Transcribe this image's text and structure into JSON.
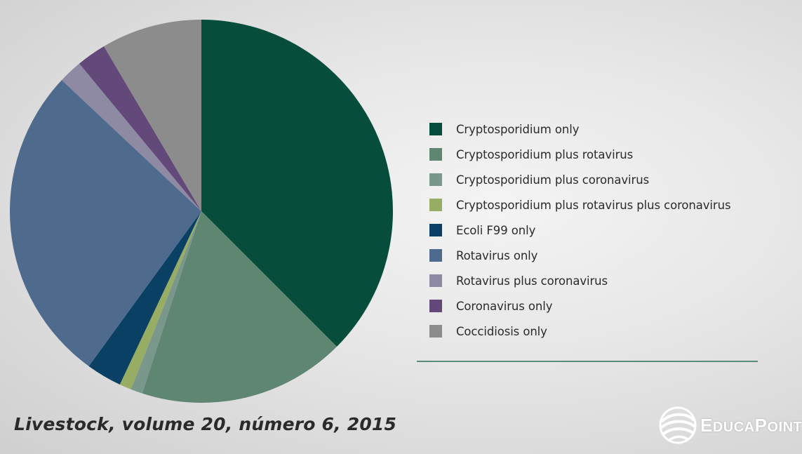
{
  "chart_data": {
    "type": "pie",
    "categories": [
      "Cryptosporidium only",
      "Cryptosporidium plus rotavirus",
      "Cryptosporidium plus coronavirus",
      "Cryptosporidium plus rotavirus plus coronavirus",
      "Ecoli F99 only",
      "Rotavirus only",
      "Rotavirus plus coronavirus",
      "Coronavirus only",
      "Coccidiosis only"
    ],
    "values": [
      37.5,
      17.5,
      1.0,
      1.0,
      3.0,
      27.0,
      2.0,
      2.5,
      8.5
    ],
    "colors": [
      "#064e3b",
      "#5f8573",
      "#7a978c",
      "#98ad64",
      "#0b4065",
      "#4e6b8e",
      "#8f8aa4",
      "#63487a",
      "#8c8c8c"
    ],
    "legend_position": "right",
    "start_angle": "12 o'clock",
    "direction": "clockwise"
  },
  "source_citation": "Livestock, volume 20, número 6, 2015",
  "brand": {
    "name_parts": [
      {
        "text": "E",
        "size": "big"
      },
      {
        "text": "DUCA",
        "size": "small"
      },
      {
        "text": "P",
        "size": "big"
      },
      {
        "text": "OINT",
        "size": "small"
      }
    ],
    "logo_icon": "globe-swirl-icon"
  }
}
